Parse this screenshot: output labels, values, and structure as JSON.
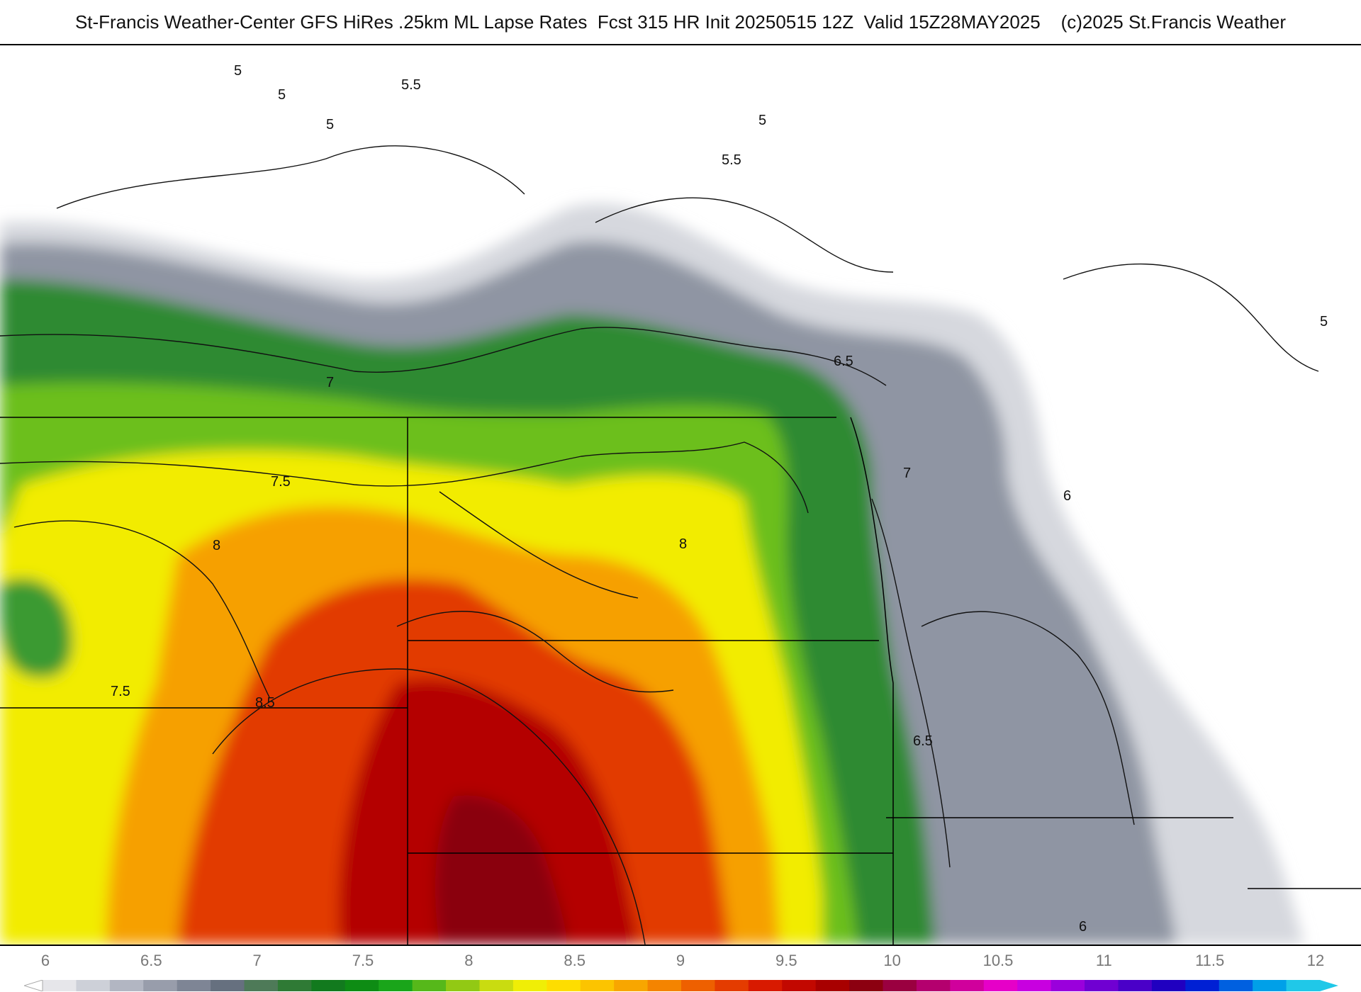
{
  "header": {
    "title": "St-Francis Weather-Center GFS HiRes .25km ML Lapse Rates  Fcst 315 HR Init 20250515 12Z  Valid 15Z28MAY2025    (c)2025 St.Francis Weather"
  },
  "map": {
    "contour_labels": [
      "5",
      "5",
      "5.5",
      "5",
      "5",
      "5.5",
      "5",
      "6.5",
      "7",
      "7",
      "7.5",
      "8",
      "8",
      "7.5",
      "8.5",
      "6",
      "6.5",
      "6"
    ]
  },
  "legend": {
    "ticks": [
      "6",
      "6.5",
      "7",
      "7.5",
      "8",
      "8.5",
      "9",
      "9.5",
      "10",
      "10.5",
      "11",
      "11.5",
      "12"
    ],
    "colors": [
      "#e6e6ea",
      "#cdd0d8",
      "#b2b6c2",
      "#989dab",
      "#7e8595",
      "#66707f",
      "#4e7a58",
      "#2f7a35",
      "#127a1e",
      "#0e8c14",
      "#1aa51a",
      "#56b81a",
      "#92c914",
      "#c9dc10",
      "#f0ee06",
      "#fedd00",
      "#fcc400",
      "#f8a600",
      "#f48400",
      "#ee6000",
      "#e43c00",
      "#d81a00",
      "#c20800",
      "#a80000",
      "#8c0010",
      "#9a0040",
      "#b4006e",
      "#d0009c",
      "#e600c8",
      "#c800e0",
      "#9a00dc",
      "#7000d2",
      "#4a00c8",
      "#2000c0",
      "#0020d4",
      "#0060e0",
      "#00a0e8",
      "#20c8e8"
    ]
  }
}
